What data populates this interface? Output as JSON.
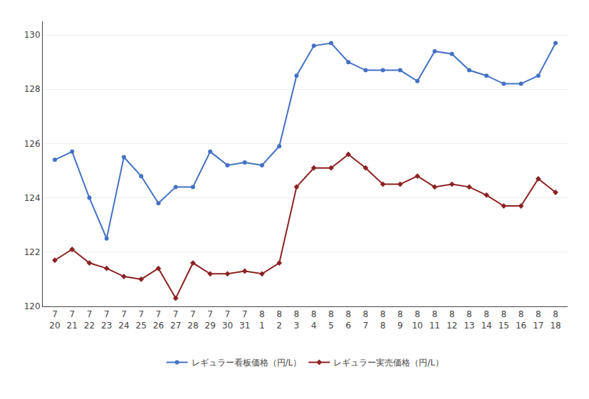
{
  "chart_data": {
    "type": "line",
    "categories": [
      "7\n20",
      "7\n21",
      "7\n22",
      "7\n23",
      "7\n24",
      "7\n25",
      "7\n26",
      "7\n27",
      "7\n28",
      "7\n29",
      "7\n30",
      "7\n31",
      "8\n1",
      "8\n2",
      "8\n3",
      "8\n4",
      "8\n5",
      "8\n6",
      "8\n7",
      "8\n8",
      "8\n9",
      "8\n10",
      "8\n11",
      "8\n12",
      "8\n13",
      "8\n14",
      "8\n15",
      "8\n16",
      "8\n17",
      "8\n18"
    ],
    "series": [
      {
        "name": "レギュラー看板価格（円/L）",
        "color": "#4472C4",
        "marker": "circle",
        "values": [
          125.4,
          125.7,
          124.0,
          122.5,
          125.5,
          124.8,
          123.8,
          124.4,
          124.4,
          125.7,
          125.2,
          125.3,
          125.2,
          125.9,
          128.5,
          129.6,
          129.7,
          129.0,
          128.7,
          128.7,
          128.7,
          128.3,
          129.4,
          129.3,
          128.7,
          128.5,
          128.2,
          128.2,
          128.5,
          129.7
        ]
      },
      {
        "name": "レギュラー実売価格（円/L）",
        "color": "#8B2222",
        "marker": "diamond",
        "values": [
          121.7,
          122.1,
          121.6,
          121.4,
          121.1,
          121.0,
          121.4,
          120.3,
          121.6,
          121.2,
          121.2,
          121.3,
          121.2,
          121.6,
          124.4,
          125.1,
          125.1,
          125.6,
          125.1,
          124.5,
          124.5,
          124.8,
          124.4,
          124.5,
          124.4,
          124.1,
          123.7,
          123.7,
          124.7,
          124.2
        ]
      }
    ],
    "ylim": [
      120,
      130.5
    ],
    "yticks": [
      120,
      122,
      124,
      126,
      128,
      130
    ],
    "grid": true,
    "legend": "bottom"
  }
}
